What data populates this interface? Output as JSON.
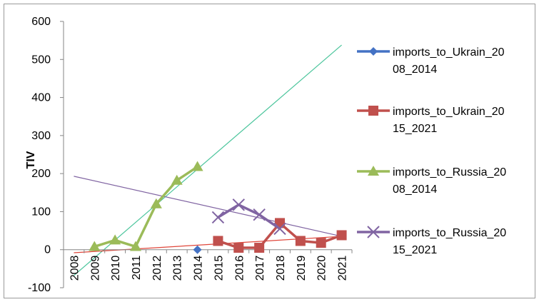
{
  "chart_data": {
    "type": "line",
    "title": "",
    "xlabel": "",
    "ylabel": "TIV",
    "categories": [
      "2008",
      "2009",
      "2010",
      "2011",
      "2012",
      "2013",
      "2014",
      "2015",
      "2016",
      "2017",
      "2018",
      "2019",
      "2020",
      "2021"
    ],
    "yticks": [
      "600",
      "500",
      "400",
      "300",
      "200",
      "100",
      "0",
      "-100"
    ],
    "ylim": [
      -100,
      600
    ],
    "grid": false,
    "legend_position": "right",
    "series": [
      {
        "name": "imports_to_Ukrain_2008_2014",
        "legend_lines": [
          "imports_to_Ukrain_20",
          "08_2014"
        ],
        "marker": "diamond",
        "color": "#4472c4",
        "points": [
          {
            "x": "2014",
            "y": 0
          }
        ]
      },
      {
        "name": "imports_to_Ukrain_2015_2021",
        "legend_lines": [
          "imports_to_Ukrain_20",
          "15_2021"
        ],
        "marker": "square",
        "color": "#c0504d",
        "points": [
          {
            "x": "2015",
            "y": 23
          },
          {
            "x": "2016",
            "y": 5
          },
          {
            "x": "2017",
            "y": 5
          },
          {
            "x": "2018",
            "y": 70
          },
          {
            "x": "2019",
            "y": 23
          },
          {
            "x": "2020",
            "y": 18
          },
          {
            "x": "2021",
            "y": 38
          }
        ]
      },
      {
        "name": "imports_to_Russia_2008_2014",
        "legend_lines": [
          "imports_to_Russia_20",
          "08_2014"
        ],
        "marker": "triangle",
        "color": "#9bbb59",
        "points": [
          {
            "x": "2009",
            "y": 8
          },
          {
            "x": "2010",
            "y": 25
          },
          {
            "x": "2011",
            "y": 8
          },
          {
            "x": "2012",
            "y": 120
          },
          {
            "x": "2013",
            "y": 182
          },
          {
            "x": "2014",
            "y": 218
          }
        ]
      },
      {
        "name": "imports_to_Russia_2015_2021",
        "legend_lines": [
          "imports_to_Russia_20",
          "15_2021"
        ],
        "marker": "x",
        "color": "#8064a2",
        "points": [
          {
            "x": "2015",
            "y": 85
          },
          {
            "x": "2016",
            "y": 118
          },
          {
            "x": "2017",
            "y": 92
          },
          {
            "x": "2018",
            "y": 55
          }
        ]
      }
    ],
    "trendlines": [
      {
        "color": "#4bc59c",
        "from": {
          "x": "2008",
          "y": -68
        },
        "to": {
          "x": "2021",
          "y": 538
        }
      },
      {
        "color": "#8064a2",
        "from": {
          "x": "2008",
          "y": 193
        },
        "to": {
          "x": "2021",
          "y": 35
        }
      },
      {
        "color": "#e0463a",
        "from": {
          "x": "2008",
          "y": -8
        },
        "to": {
          "x": "2021",
          "y": 35
        }
      }
    ]
  }
}
